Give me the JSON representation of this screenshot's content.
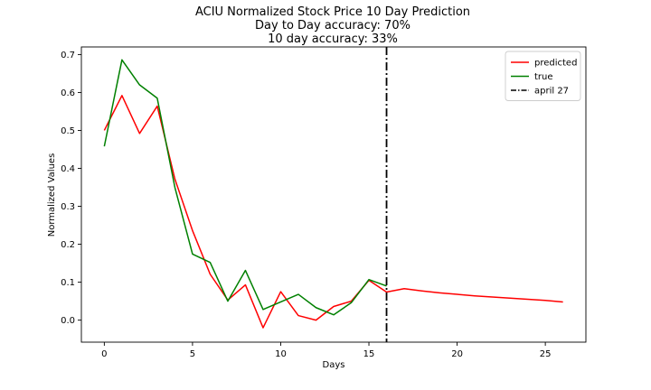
{
  "chart_data": {
    "type": "line",
    "title_lines": [
      "ACIU Normalized Stock Price 10 Day Prediction",
      "Day to Day accuracy: 70%",
      "10 day accuracy: 33%"
    ],
    "xlabel": "Days",
    "ylabel": "Normalized Values",
    "xlim": [
      -1.3,
      27.3
    ],
    "ylim": [
      -0.058,
      0.72
    ],
    "x_ticks": [
      0,
      5,
      10,
      15,
      20,
      25
    ],
    "x_tick_labels": [
      "0",
      "5",
      "10",
      "15",
      "20",
      "25"
    ],
    "y_ticks": [
      0.0,
      0.1,
      0.2,
      0.3,
      0.4,
      0.5,
      0.6,
      0.7
    ],
    "y_tick_labels": [
      "0.0",
      "0.1",
      "0.2",
      "0.3",
      "0.4",
      "0.5",
      "0.6",
      "0.7"
    ],
    "grid": false,
    "legend_position": "top-right",
    "series": [
      {
        "name": "predicted",
        "color": "#ff0000",
        "x": [
          0,
          1,
          2,
          3,
          4,
          5,
          6,
          7,
          8,
          9,
          10,
          11,
          12,
          13,
          14,
          15,
          16,
          17,
          18,
          19,
          20,
          21,
          22,
          23,
          24,
          25,
          26
        ],
        "values": [
          0.5,
          0.592,
          0.492,
          0.564,
          0.372,
          0.236,
          0.121,
          0.053,
          0.093,
          -0.02,
          0.075,
          0.012,
          0.0,
          0.036,
          0.05,
          0.105,
          0.074,
          0.083,
          0.077,
          0.072,
          0.068,
          0.064,
          0.061,
          0.058,
          0.055,
          0.052,
          0.048
        ]
      },
      {
        "name": "true",
        "color": "#008000",
        "x": [
          0,
          1,
          2,
          3,
          4,
          5,
          6,
          7,
          8,
          9,
          10,
          11,
          12,
          13,
          14,
          15,
          16
        ],
        "values": [
          0.458,
          0.686,
          0.62,
          0.585,
          0.35,
          0.174,
          0.152,
          0.05,
          0.131,
          0.028,
          0.048,
          0.068,
          0.033,
          0.014,
          0.046,
          0.107,
          0.09
        ]
      }
    ],
    "vlines": [
      {
        "name": "april 27",
        "x": 16,
        "color": "#000000",
        "style": "dashdot"
      }
    ]
  }
}
